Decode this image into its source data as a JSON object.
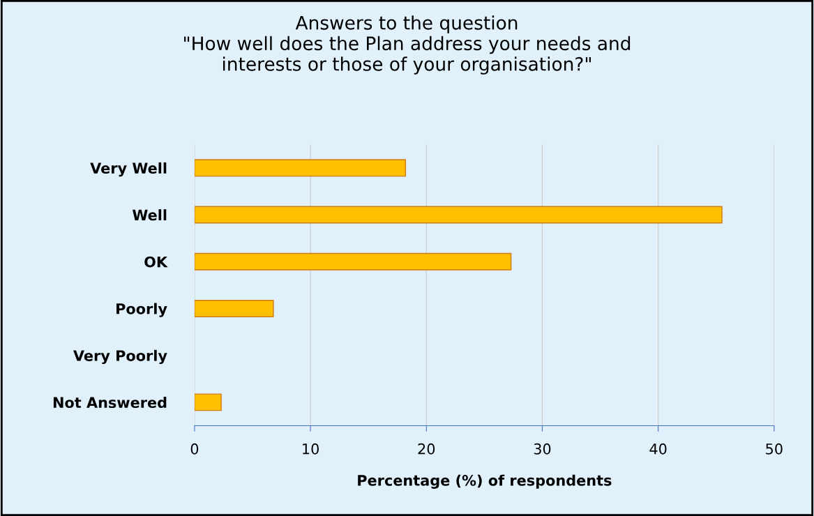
{
  "chart_data": {
    "type": "bar",
    "orientation": "horizontal",
    "title": "Answers to the question\n\"How well does the Plan address your needs and\ninterests or those of your organisation?\"",
    "xlabel": "Percentage (%) of respondents",
    "categories": [
      "Very Well",
      "Well",
      "OK",
      "Poorly",
      "Very Poorly",
      "Not Answered"
    ],
    "values": [
      18.2,
      45.5,
      27.3,
      6.8,
      0,
      2.3
    ],
    "color": "#ffc000",
    "xlim": [
      0,
      50
    ],
    "xticks": [
      0,
      10,
      20,
      30,
      40,
      50
    ],
    "grid": "x"
  }
}
